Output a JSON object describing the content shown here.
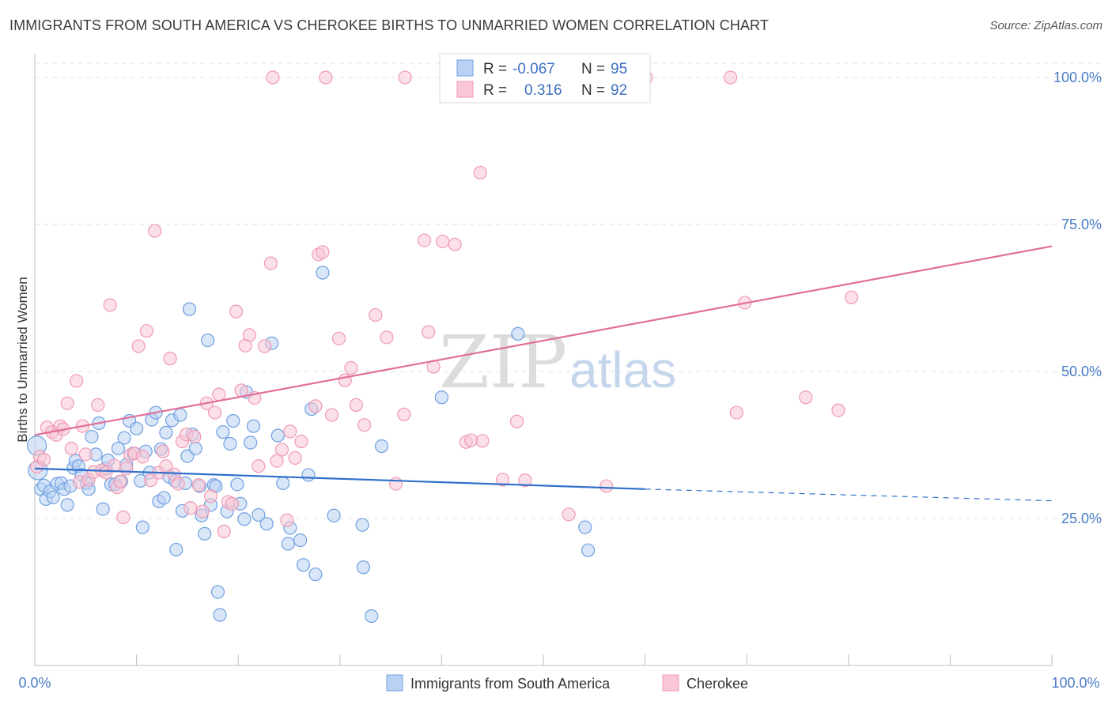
{
  "header": {
    "title": "IMMIGRANTS FROM SOUTH AMERICA VS CHEROKEE BIRTHS TO UNMARRIED WOMEN CORRELATION CHART",
    "source": "Source: ZipAtlas.com"
  },
  "watermark": {
    "zip": "ZIP",
    "atlas": "atlas"
  },
  "legend": {
    "rows": [
      {
        "r_label": "R =",
        "r_value": "-0.067",
        "n_label": "N =",
        "n_value": "95"
      },
      {
        "r_label": "R =",
        "r_value": "0.316",
        "n_label": "N =",
        "n_value": "92"
      }
    ]
  },
  "chart_data": {
    "type": "scatter",
    "title": "IMMIGRANTS FROM SOUTH AMERICA VS CHEROKEE BIRTHS TO UNMARRIED WOMEN CORRELATION CHART",
    "xlabel": "",
    "ylabel": "Births to Unmarried Women",
    "xlim": [
      0,
      100
    ],
    "ylim": [
      0,
      102
    ],
    "x_ticks": [
      "0.0%",
      "100.0%"
    ],
    "y_ticks": [
      {
        "value": 25,
        "label": "25.0%"
      },
      {
        "value": 50,
        "label": "50.0%"
      },
      {
        "value": 75,
        "label": "75.0%"
      },
      {
        "value": 100,
        "label": "100.0%"
      }
    ],
    "grid": true,
    "legend_position": "top-center",
    "series": [
      {
        "name": "Immigrants from South America",
        "color": "#6fa0e0",
        "fill": "#b9d2f3",
        "line_color": "#2f6fcb",
        "r": -0.067,
        "n": 95,
        "trend": {
          "x0": 0,
          "y0": 33.5,
          "x1": 60,
          "y1": 30.0,
          "dash_x1": 100,
          "dash_y1": 28.0
        },
        "points": [
          [
            0.2,
            37.4
          ],
          [
            0.3,
            33.2
          ],
          [
            0.6,
            30.0
          ],
          [
            0.9,
            30.6
          ],
          [
            1.1,
            28.3
          ],
          [
            1.5,
            29.6
          ],
          [
            1.8,
            28.6
          ],
          [
            2.2,
            30.9
          ],
          [
            2.6,
            31.0
          ],
          [
            2.9,
            30.0
          ],
          [
            3.2,
            27.3
          ],
          [
            3.5,
            30.5
          ],
          [
            3.8,
            33.6
          ],
          [
            4.0,
            34.8
          ],
          [
            4.3,
            33.9
          ],
          [
            4.6,
            32.4
          ],
          [
            5.1,
            31.0
          ],
          [
            5.3,
            30.0
          ],
          [
            5.6,
            38.9
          ],
          [
            6.0,
            35.9
          ],
          [
            6.3,
            41.2
          ],
          [
            6.7,
            26.6
          ],
          [
            7.0,
            33.5
          ],
          [
            7.2,
            34.9
          ],
          [
            7.5,
            30.8
          ],
          [
            7.9,
            30.8
          ],
          [
            8.2,
            36.9
          ],
          [
            8.5,
            31.3
          ],
          [
            8.8,
            38.7
          ],
          [
            9.0,
            34.1
          ],
          [
            9.3,
            41.6
          ],
          [
            9.7,
            36.1
          ],
          [
            10.0,
            40.3
          ],
          [
            10.4,
            31.4
          ],
          [
            10.6,
            23.5
          ],
          [
            10.9,
            36.4
          ],
          [
            11.3,
            32.8
          ],
          [
            11.5,
            41.8
          ],
          [
            11.9,
            43.0
          ],
          [
            12.2,
            27.9
          ],
          [
            12.4,
            36.8
          ],
          [
            12.7,
            28.5
          ],
          [
            12.9,
            39.6
          ],
          [
            13.2,
            32.1
          ],
          [
            13.5,
            41.7
          ],
          [
            13.8,
            31.4
          ],
          [
            13.9,
            19.7
          ],
          [
            14.3,
            42.6
          ],
          [
            14.5,
            26.3
          ],
          [
            14.8,
            31.0
          ],
          [
            15.0,
            35.6
          ],
          [
            15.2,
            60.6
          ],
          [
            15.5,
            39.3
          ],
          [
            15.8,
            36.9
          ],
          [
            16.2,
            30.5
          ],
          [
            16.4,
            25.5
          ],
          [
            16.7,
            22.4
          ],
          [
            17.0,
            55.3
          ],
          [
            17.3,
            27.3
          ],
          [
            17.6,
            30.7
          ],
          [
            17.8,
            30.5
          ],
          [
            18.0,
            12.5
          ],
          [
            18.2,
            8.6
          ],
          [
            18.5,
            39.7
          ],
          [
            18.9,
            26.2
          ],
          [
            19.2,
            37.7
          ],
          [
            19.5,
            41.6
          ],
          [
            19.9,
            30.8
          ],
          [
            20.2,
            27.5
          ],
          [
            20.6,
            24.9
          ],
          [
            20.8,
            46.5
          ],
          [
            21.2,
            37.9
          ],
          [
            21.5,
            40.7
          ],
          [
            22.0,
            25.6
          ],
          [
            22.8,
            24.1
          ],
          [
            23.3,
            54.8
          ],
          [
            23.9,
            39.1
          ],
          [
            24.4,
            31.0
          ],
          [
            24.9,
            20.7
          ],
          [
            25.1,
            23.4
          ],
          [
            26.1,
            21.3
          ],
          [
            26.4,
            17.1
          ],
          [
            26.9,
            32.4
          ],
          [
            27.2,
            43.6
          ],
          [
            27.6,
            15.5
          ],
          [
            28.3,
            66.8
          ],
          [
            29.4,
            25.5
          ],
          [
            32.2,
            23.9
          ],
          [
            32.3,
            16.7
          ],
          [
            33.1,
            8.4
          ],
          [
            34.1,
            37.3
          ],
          [
            40.0,
            45.6
          ],
          [
            47.5,
            56.4
          ],
          [
            54.1,
            23.5
          ],
          [
            54.4,
            19.6
          ]
        ]
      },
      {
        "name": "Cherokee",
        "color": "#f09ab5",
        "fill": "#f8c6d6",
        "line_color": "#e06f98",
        "r": 0.316,
        "n": 92,
        "trend": {
          "x0": 0,
          "y0": 39.2,
          "x1": 100,
          "y1": 71.3
        },
        "points": [
          [
            0.2,
            33.8
          ],
          [
            0.5,
            35.5
          ],
          [
            0.9,
            35.0
          ],
          [
            1.2,
            40.5
          ],
          [
            1.7,
            39.7
          ],
          [
            2.1,
            39.2
          ],
          [
            2.5,
            40.7
          ],
          [
            2.8,
            40.2
          ],
          [
            3.2,
            44.6
          ],
          [
            3.6,
            36.9
          ],
          [
            4.1,
            48.4
          ],
          [
            4.4,
            31.2
          ],
          [
            4.7,
            40.7
          ],
          [
            5.0,
            35.9
          ],
          [
            5.3,
            31.6
          ],
          [
            5.8,
            32.9
          ],
          [
            6.2,
            44.3
          ],
          [
            6.6,
            33.2
          ],
          [
            7.0,
            32.8
          ],
          [
            7.4,
            61.3
          ],
          [
            7.8,
            34.0
          ],
          [
            8.1,
            30.3
          ],
          [
            8.4,
            31.3
          ],
          [
            8.7,
            25.2
          ],
          [
            9.0,
            33.5
          ],
          [
            9.4,
            35.8
          ],
          [
            9.8,
            36.1
          ],
          [
            10.2,
            54.3
          ],
          [
            10.6,
            35.5
          ],
          [
            11.0,
            56.9
          ],
          [
            11.4,
            31.5
          ],
          [
            11.8,
            73.9
          ],
          [
            12.2,
            32.8
          ],
          [
            12.6,
            36.4
          ],
          [
            12.9,
            33.9
          ],
          [
            13.3,
            52.2
          ],
          [
            13.7,
            32.5
          ],
          [
            14.1,
            30.9
          ],
          [
            14.5,
            38.1
          ],
          [
            14.9,
            39.3
          ],
          [
            15.3,
            26.8
          ],
          [
            15.7,
            38.9
          ],
          [
            16.1,
            30.7
          ],
          [
            16.5,
            26.2
          ],
          [
            16.9,
            44.6
          ],
          [
            17.3,
            28.8
          ],
          [
            17.7,
            43.0
          ],
          [
            18.1,
            46.1
          ],
          [
            18.6,
            22.8
          ],
          [
            19.0,
            27.8
          ],
          [
            19.4,
            27.5
          ],
          [
            19.8,
            60.2
          ],
          [
            20.3,
            46.8
          ],
          [
            20.7,
            54.4
          ],
          [
            21.1,
            56.2
          ],
          [
            21.6,
            45.5
          ],
          [
            22.0,
            33.9
          ],
          [
            22.6,
            54.3
          ],
          [
            23.2,
            68.4
          ],
          [
            23.8,
            34.8
          ],
          [
            24.3,
            36.7
          ],
          [
            24.8,
            24.7
          ],
          [
            25.1,
            39.8
          ],
          [
            25.6,
            35.3
          ],
          [
            26.2,
            38.1
          ],
          [
            27.6,
            44.1
          ],
          [
            27.9,
            69.9
          ],
          [
            28.3,
            70.3
          ],
          [
            29.2,
            42.6
          ],
          [
            29.9,
            55.6
          ],
          [
            30.5,
            48.5
          ],
          [
            31.1,
            50.6
          ],
          [
            31.6,
            44.3
          ],
          [
            32.4,
            40.9
          ],
          [
            33.5,
            59.6
          ],
          [
            34.6,
            55.8
          ],
          [
            35.5,
            30.9
          ],
          [
            36.3,
            42.7
          ],
          [
            38.3,
            72.3
          ],
          [
            38.7,
            56.7
          ],
          [
            39.2,
            50.8
          ],
          [
            40.1,
            72.1
          ],
          [
            41.3,
            71.6
          ],
          [
            42.4,
            38.0
          ],
          [
            42.9,
            38.3
          ],
          [
            43.8,
            83.8
          ],
          [
            44.0,
            38.2
          ],
          [
            46.0,
            31.6
          ],
          [
            47.4,
            41.5
          ],
          [
            48.2,
            31.5
          ],
          [
            52.5,
            25.7
          ],
          [
            56.2,
            30.5
          ]
        ],
        "points_far": [
          [
            23.4,
            100
          ],
          [
            28.6,
            100
          ],
          [
            36.4,
            100
          ],
          [
            53.9,
            100
          ],
          [
            60.1,
            100
          ],
          [
            68.4,
            100
          ],
          [
            69.0,
            43.0
          ],
          [
            69.8,
            61.7
          ],
          [
            75.8,
            45.6
          ],
          [
            79.0,
            43.4
          ],
          [
            80.3,
            62.6
          ]
        ]
      }
    ]
  },
  "bottom_legend": {
    "items": [
      {
        "label": "Immigrants from South America"
      },
      {
        "label": "Cherokee"
      }
    ]
  }
}
